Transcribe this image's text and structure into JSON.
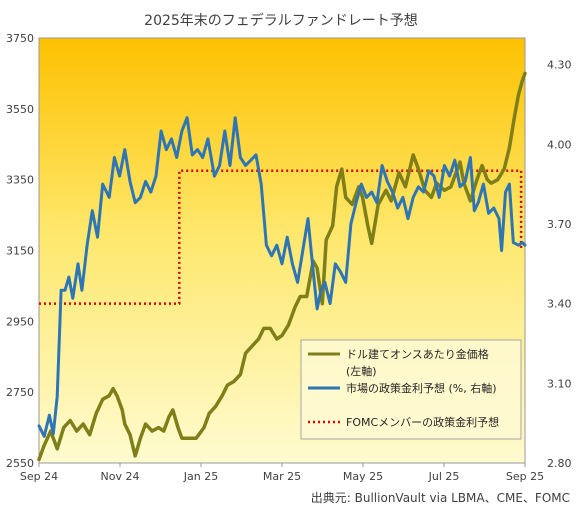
{
  "chart_data": {
    "type": "line",
    "title": "2025年末のフェデラルファンドレート予想",
    "source": "出典元: BullionVault  via LBMA、CME、FOMC",
    "x_ticks": [
      "Sep 24",
      "Nov 24",
      "Jan 25",
      "Mar 25",
      "May 25",
      "Jul 25",
      "Sep 25"
    ],
    "x_range": [
      "2024-09-01",
      "2025-09-10"
    ],
    "y_left": {
      "ticks": [
        "3750",
        "3550",
        "3350",
        "3150",
        "2950",
        "2750",
        "2550"
      ],
      "range": [
        2550,
        3750
      ]
    },
    "y_right": {
      "ticks": [
        "4.30",
        "4.00",
        "3.70",
        "3.40",
        "3.10",
        "2.80"
      ],
      "range": [
        2.8,
        4.4
      ]
    },
    "legend": {
      "position": "bottom-right",
      "items": [
        "ドル建てオンスあたり金価格",
        "(左軸)",
        "市場の政策金利予想 (%, 右軸)",
        "FOMCメンバーの政策金利予想"
      ]
    },
    "series": [
      {
        "name": "ドル建てオンスあたり金価格",
        "axis": "left",
        "color": "#7f7f19",
        "points": [
          [
            "2024-09-01",
            2560
          ],
          [
            "2024-09-05",
            2600
          ],
          [
            "2024-09-10",
            2640
          ],
          [
            "2024-09-15",
            2590
          ],
          [
            "2024-09-20",
            2650
          ],
          [
            "2024-09-25",
            2670
          ],
          [
            "2024-09-30",
            2640
          ],
          [
            "2024-10-05",
            2660
          ],
          [
            "2024-10-10",
            2630
          ],
          [
            "2024-10-15",
            2690
          ],
          [
            "2024-10-20",
            2730
          ],
          [
            "2024-10-25",
            2740
          ],
          [
            "2024-10-28",
            2760
          ],
          [
            "2024-10-31",
            2740
          ],
          [
            "2024-11-04",
            2700
          ],
          [
            "2024-11-06",
            2660
          ],
          [
            "2024-11-10",
            2630
          ],
          [
            "2024-11-14",
            2570
          ],
          [
            "2024-11-18",
            2620
          ],
          [
            "2024-11-22",
            2660
          ],
          [
            "2024-11-27",
            2640
          ],
          [
            "2024-12-02",
            2650
          ],
          [
            "2024-12-06",
            2640
          ],
          [
            "2024-12-10",
            2680
          ],
          [
            "2024-12-13",
            2700
          ],
          [
            "2024-12-17",
            2650
          ],
          [
            "2024-12-20",
            2620
          ],
          [
            "2024-12-26",
            2620
          ],
          [
            "2024-12-31",
            2620
          ],
          [
            "2025-01-06",
            2650
          ],
          [
            "2025-01-10",
            2690
          ],
          [
            "2025-01-15",
            2710
          ],
          [
            "2025-01-20",
            2740
          ],
          [
            "2025-01-24",
            2770
          ],
          [
            "2025-01-29",
            2780
          ],
          [
            "2025-02-03",
            2800
          ],
          [
            "2025-02-07",
            2860
          ],
          [
            "2025-02-12",
            2880
          ],
          [
            "2025-02-17",
            2900
          ],
          [
            "2025-02-21",
            2930
          ],
          [
            "2025-02-26",
            2930
          ],
          [
            "2025-03-03",
            2900
          ],
          [
            "2025-03-07",
            2910
          ],
          [
            "2025-03-12",
            2940
          ],
          [
            "2025-03-17",
            2990
          ],
          [
            "2025-03-21",
            3020
          ],
          [
            "2025-03-26",
            3020
          ],
          [
            "2025-03-31",
            3120
          ],
          [
            "2025-04-03",
            3100
          ],
          [
            "2025-04-07",
            3000
          ],
          [
            "2025-04-10",
            3180
          ],
          [
            "2025-04-15",
            3220
          ],
          [
            "2025-04-18",
            3330
          ],
          [
            "2025-04-22",
            3380
          ],
          [
            "2025-04-25",
            3300
          ],
          [
            "2025-04-30",
            3280
          ],
          [
            "2025-05-05",
            3330
          ],
          [
            "2025-05-08",
            3300
          ],
          [
            "2025-05-12",
            3220
          ],
          [
            "2025-05-15",
            3170
          ],
          [
            "2025-05-20",
            3280
          ],
          [
            "2025-05-26",
            3320
          ],
          [
            "2025-05-30",
            3290
          ],
          [
            "2025-06-05",
            3370
          ],
          [
            "2025-06-10",
            3330
          ],
          [
            "2025-06-16",
            3420
          ],
          [
            "2025-06-20",
            3380
          ],
          [
            "2025-06-25",
            3320
          ],
          [
            "2025-06-30",
            3300
          ],
          [
            "2025-07-04",
            3340
          ],
          [
            "2025-07-10",
            3320
          ],
          [
            "2025-07-15",
            3330
          ],
          [
            "2025-07-22",
            3400
          ],
          [
            "2025-07-25",
            3340
          ],
          [
            "2025-07-30",
            3290
          ],
          [
            "2025-08-04",
            3350
          ],
          [
            "2025-08-08",
            3390
          ],
          [
            "2025-08-12",
            3350
          ],
          [
            "2025-08-15",
            3340
          ],
          [
            "2025-08-20",
            3350
          ],
          [
            "2025-08-25",
            3380
          ],
          [
            "2025-08-29",
            3440
          ],
          [
            "2025-09-02",
            3530
          ],
          [
            "2025-09-05",
            3590
          ],
          [
            "2025-09-08",
            3630
          ],
          [
            "2025-09-10",
            3650
          ]
        ]
      },
      {
        "name": "市場の政策金利予想 (%, 右軸)",
        "axis": "right",
        "color": "#2e75b6",
        "points": [
          [
            "2024-09-01",
            2.94
          ],
          [
            "2024-09-05",
            2.9
          ],
          [
            "2024-09-09",
            2.98
          ],
          [
            "2024-09-12",
            2.91
          ],
          [
            "2024-09-15",
            3.05
          ],
          [
            "2024-09-18",
            3.45
          ],
          [
            "2024-09-21",
            3.45
          ],
          [
            "2024-09-24",
            3.5
          ],
          [
            "2024-09-27",
            3.42
          ],
          [
            "2024-10-01",
            3.55
          ],
          [
            "2024-10-04",
            3.45
          ],
          [
            "2024-10-08",
            3.62
          ],
          [
            "2024-10-12",
            3.75
          ],
          [
            "2024-10-16",
            3.65
          ],
          [
            "2024-10-20",
            3.85
          ],
          [
            "2024-10-25",
            3.8
          ],
          [
            "2024-10-29",
            3.95
          ],
          [
            "2024-11-02",
            3.88
          ],
          [
            "2024-11-06",
            3.98
          ],
          [
            "2024-11-10",
            3.86
          ],
          [
            "2024-11-14",
            3.78
          ],
          [
            "2024-11-18",
            3.8
          ],
          [
            "2024-11-22",
            3.86
          ],
          [
            "2024-11-26",
            3.82
          ],
          [
            "2024-11-30",
            3.88
          ],
          [
            "2024-12-04",
            4.05
          ],
          [
            "2024-12-08",
            3.98
          ],
          [
            "2024-12-12",
            4.02
          ],
          [
            "2024-12-16",
            3.95
          ],
          [
            "2024-12-20",
            4.05
          ],
          [
            "2024-12-24",
            4.1
          ],
          [
            "2024-12-28",
            3.96
          ],
          [
            "2025-01-01",
            3.98
          ],
          [
            "2025-01-05",
            3.95
          ],
          [
            "2025-01-09",
            4.02
          ],
          [
            "2025-01-14",
            3.88
          ],
          [
            "2025-01-18",
            3.92
          ],
          [
            "2025-01-22",
            4.05
          ],
          [
            "2025-01-26",
            3.92
          ],
          [
            "2025-01-30",
            4.1
          ],
          [
            "2025-02-03",
            3.95
          ],
          [
            "2025-02-07",
            3.92
          ],
          [
            "2025-02-11",
            3.94
          ],
          [
            "2025-02-15",
            3.96
          ],
          [
            "2025-02-19",
            3.85
          ],
          [
            "2025-02-23",
            3.62
          ],
          [
            "2025-02-27",
            3.58
          ],
          [
            "2025-03-03",
            3.62
          ],
          [
            "2025-03-07",
            3.55
          ],
          [
            "2025-03-11",
            3.65
          ],
          [
            "2025-03-15",
            3.55
          ],
          [
            "2025-03-19",
            3.48
          ],
          [
            "2025-03-23",
            3.6
          ],
          [
            "2025-03-27",
            3.72
          ],
          [
            "2025-03-31",
            3.52
          ],
          [
            "2025-04-03",
            3.38
          ],
          [
            "2025-04-06",
            3.45
          ],
          [
            "2025-04-09",
            3.48
          ],
          [
            "2025-04-13",
            3.4
          ],
          [
            "2025-04-17",
            3.55
          ],
          [
            "2025-04-21",
            3.52
          ],
          [
            "2025-04-25",
            3.48
          ],
          [
            "2025-04-29",
            3.7
          ],
          [
            "2025-05-03",
            3.78
          ],
          [
            "2025-05-07",
            3.85
          ],
          [
            "2025-05-11",
            3.8
          ],
          [
            "2025-05-15",
            3.82
          ],
          [
            "2025-05-19",
            3.78
          ],
          [
            "2025-05-23",
            3.92
          ],
          [
            "2025-05-27",
            3.86
          ],
          [
            "2025-05-31",
            3.82
          ],
          [
            "2025-06-04",
            3.76
          ],
          [
            "2025-06-08",
            3.8
          ],
          [
            "2025-06-12",
            3.72
          ],
          [
            "2025-06-16",
            3.8
          ],
          [
            "2025-06-20",
            3.84
          ],
          [
            "2025-06-24",
            3.82
          ],
          [
            "2025-06-28",
            3.9
          ],
          [
            "2025-07-02",
            3.88
          ],
          [
            "2025-07-06",
            3.8
          ],
          [
            "2025-07-10",
            3.92
          ],
          [
            "2025-07-14",
            3.88
          ],
          [
            "2025-07-18",
            3.94
          ],
          [
            "2025-07-22",
            3.84
          ],
          [
            "2025-07-26",
            3.86
          ],
          [
            "2025-07-30",
            3.95
          ],
          [
            "2025-08-02",
            3.75
          ],
          [
            "2025-08-05",
            3.78
          ],
          [
            "2025-08-09",
            3.85
          ],
          [
            "2025-08-13",
            3.74
          ],
          [
            "2025-08-17",
            3.76
          ],
          [
            "2025-08-21",
            3.72
          ],
          [
            "2025-08-23",
            3.6
          ],
          [
            "2025-08-26",
            3.82
          ],
          [
            "2025-08-29",
            3.85
          ],
          [
            "2025-09-01",
            3.63
          ],
          [
            "2025-09-05",
            3.62
          ],
          [
            "2025-09-08",
            3.63
          ],
          [
            "2025-09-10",
            3.62
          ]
        ]
      },
      {
        "name": "FOMCメンバーの政策金利予想",
        "axis": "right",
        "color": "#e00000",
        "style": "dotted",
        "points": [
          [
            "2024-09-01",
            3.4
          ],
          [
            "2024-12-18",
            3.4
          ],
          [
            "2024-12-18",
            3.9
          ],
          [
            "2025-09-07",
            3.9
          ],
          [
            "2025-09-07",
            3.6
          ]
        ]
      }
    ]
  }
}
